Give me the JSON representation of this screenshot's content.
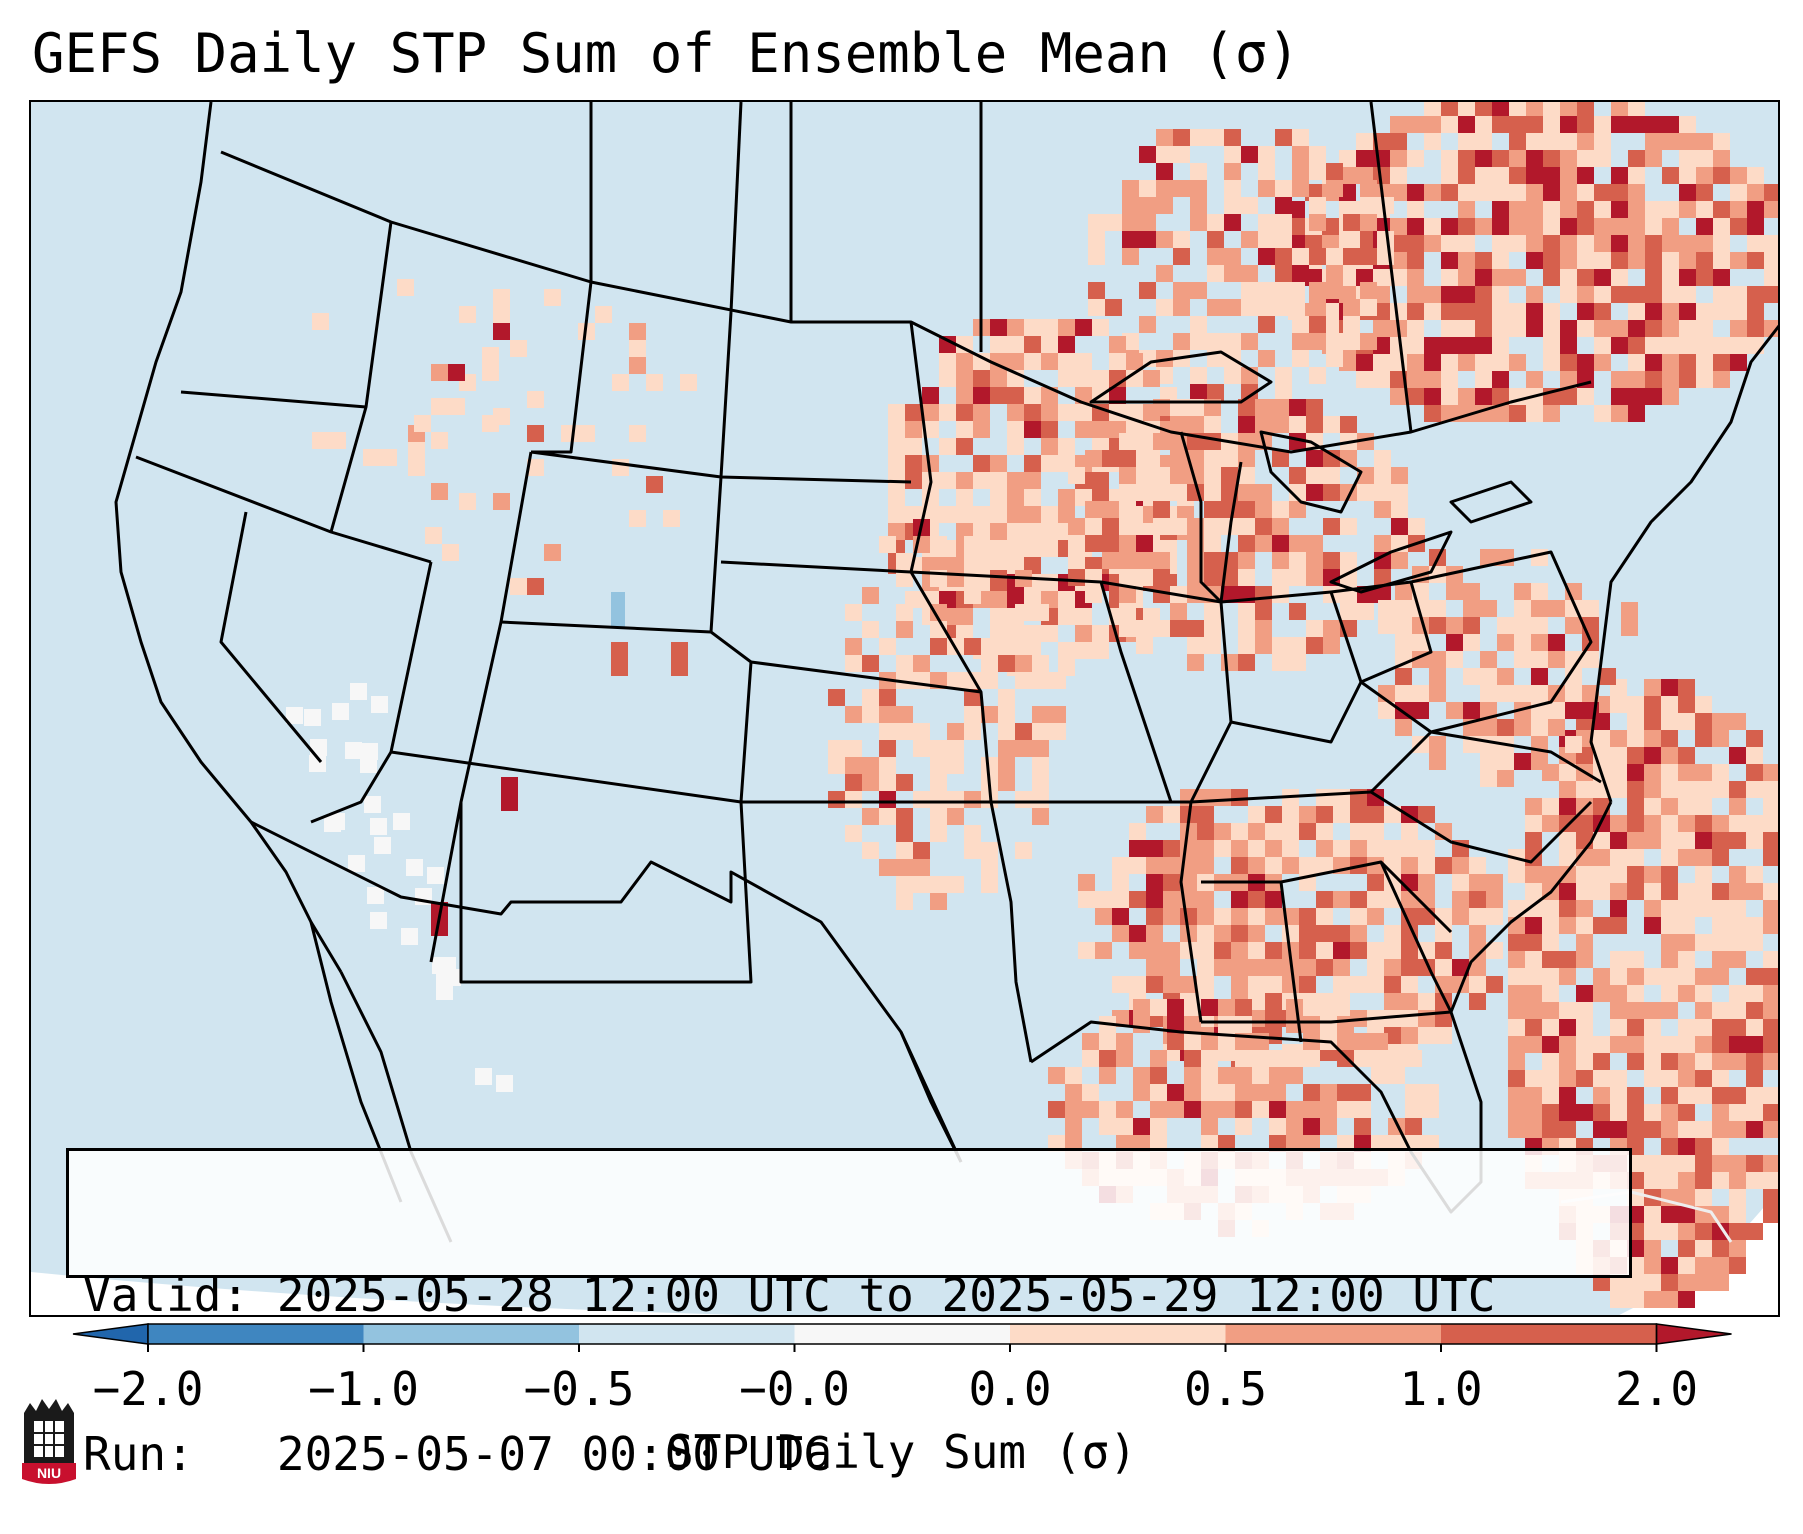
{
  "title": "GEFS Daily STP Sum of Ensemble Mean (σ)",
  "info": {
    "valid_label": "Valid:",
    "valid_text": "2025-05-28 12:00 UTC to 2025-05-29 12:00 UTC",
    "run_label": "Run:",
    "run_text": "2025-05-07 00:00 UTC"
  },
  "colorbar": {
    "label": "STP Daily Sum (σ)",
    "ticks": [
      "−2.0",
      "−1.0",
      "−0.5",
      "−0.0",
      "0.0",
      "0.5",
      "1.0",
      "2.0"
    ],
    "colors": [
      "#2f7ebb",
      "#86bedc",
      "#d1e5f0",
      "#f7f7f7",
      "#fcd9c4",
      "#ef9b7f",
      "#d3513f",
      "#b2182b"
    ],
    "bins": [
      {
        "from": -2.0,
        "to": -1.0,
        "color": "#3f86c0"
      },
      {
        "from": -1.0,
        "to": -0.5,
        "color": "#93c3df"
      },
      {
        "from": -0.5,
        "to": -0.0,
        "color": "#d1e5f0"
      },
      {
        "from": -0.0,
        "to": 0.0,
        "color": "#f7f7f7"
      },
      {
        "from": 0.0,
        "to": 0.5,
        "color": "#fddbc7"
      },
      {
        "from": 0.5,
        "to": 1.0,
        "color": "#f19e83"
      },
      {
        "from": 1.0,
        "to": 2.0,
        "color": "#d6604d"
      }
    ],
    "under_color": "#2166ac",
    "over_color": "#b2182b"
  },
  "map": {
    "background_color": "#d1e5f0",
    "land_neutral_color": "#f7f7f7",
    "border_color": "#000000",
    "region": "CONUS",
    "projection": "Lambert conformal"
  },
  "logo": {
    "text": "NIU"
  }
}
